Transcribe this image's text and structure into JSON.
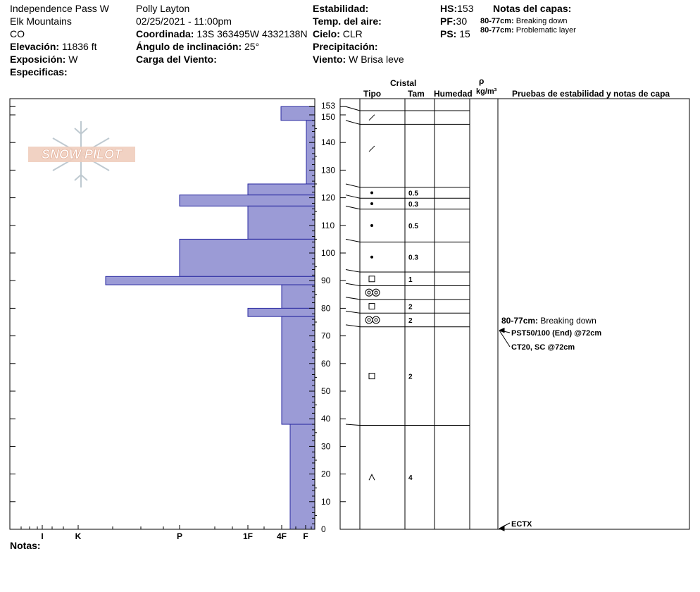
{
  "header": {
    "col1": {
      "location": "Independence Pass W",
      "range": "Elk Mountains",
      "state": "CO",
      "elev_label": "Elevación:",
      "elev_value": "11836 ft",
      "aspect_label": "Exposición:",
      "aspect_value": "W",
      "specifics_label": "Especificas:"
    },
    "col2": {
      "observer": "Polly Layton",
      "datetime": "02/25/2021 - 11:00pm",
      "coord_label": "Coordinada:",
      "coord_value": "13S 363495W 4332138N",
      "slope_label": "Ángulo de inclinación:",
      "slope_value": "25°",
      "wind_load_label": "Carga del Viento:"
    },
    "col3": {
      "stability_label": "Estabilidad:",
      "air_temp_label": "Temp. del aire:",
      "sky_label": "Cielo:",
      "sky_value": "CLR",
      "precip_label": "Precipitación:",
      "wind_label": "Viento:",
      "wind_value": "W Brisa leve"
    },
    "col4": {
      "hs_label": "HS:",
      "hs_value": "153",
      "pf_label": "PF:",
      "pf_value": "30",
      "ps_label": "PS:",
      "ps_value": "15"
    },
    "notes": {
      "title": "Notas del capas:",
      "items": [
        {
          "range": "80-77cm:",
          "text": "Breaking down"
        },
        {
          "range": "80-77cm:",
          "text": "Problematic layer"
        }
      ]
    }
  },
  "columns": {
    "crystal": "Cristal",
    "type": "Tipo",
    "size": "Tam",
    "moisture": "Humedad",
    "rho": "ρ",
    "density_unit": "kg/m³",
    "tests": "Pruebas de estabilidad y notas de capa"
  },
  "logo_text": "SNOW PILOT",
  "notes_label": "Notas:",
  "colors": {
    "bar_fill": "#9b9bd6",
    "bar_stroke": "#2a2aa0"
  },
  "chart_data": {
    "type": "bar",
    "orientation": "horizontal-step",
    "title": "",
    "ylabel": "",
    "ylim": [
      0,
      153
    ],
    "yticks": [
      0,
      10,
      20,
      30,
      40,
      50,
      60,
      70,
      80,
      90,
      100,
      110,
      120,
      130,
      140,
      150,
      153
    ],
    "hardness_scale": [
      "I",
      "K",
      "P",
      "1F",
      "4F",
      "F"
    ],
    "layers": [
      {
        "top": 153,
        "bottom": 148,
        "hardness": "4F+"
      },
      {
        "top": 148,
        "bottom": 125,
        "hardness": "F+"
      },
      {
        "top": 125,
        "bottom": 121,
        "hardness": "1F"
      },
      {
        "top": 121,
        "bottom": 117,
        "hardness": "P"
      },
      {
        "top": 117,
        "bottom": 105,
        "hardness": "1F"
      },
      {
        "top": 105,
        "bottom": 91.5,
        "hardness": "P"
      },
      {
        "top": 91.5,
        "bottom": 88.5,
        "hardness": "K+"
      },
      {
        "top": 88.5,
        "bottom": 80,
        "hardness": "4F"
      },
      {
        "top": 80,
        "bottom": 77,
        "hardness": "1F"
      },
      {
        "top": 77,
        "bottom": 38,
        "hardness": "4F"
      },
      {
        "top": 38,
        "bottom": 0,
        "hardness": "4F-"
      }
    ],
    "grain_layers": [
      {
        "top": 153,
        "bottom": 148,
        "grain": "decomposing",
        "size": ""
      },
      {
        "top": 148,
        "bottom": 125,
        "grain": "decomposing",
        "size": ""
      },
      {
        "top": 125,
        "bottom": 121,
        "grain": "rounded",
        "size": "0.5"
      },
      {
        "top": 121,
        "bottom": 117,
        "grain": "rounded",
        "size": "0.3"
      },
      {
        "top": 117,
        "bottom": 105,
        "grain": "rounded",
        "size": "0.5"
      },
      {
        "top": 105,
        "bottom": 94,
        "grain": "rounded",
        "size": "0.3"
      },
      {
        "top": 94,
        "bottom": 89,
        "grain": "faceted",
        "size": "1"
      },
      {
        "top": 89,
        "bottom": 84,
        "grain": "melt-freeze",
        "size": ""
      },
      {
        "top": 84,
        "bottom": 79,
        "grain": "faceted",
        "size": "2"
      },
      {
        "top": 79,
        "bottom": 74,
        "grain": "melt-freeze",
        "size": "2"
      },
      {
        "top": 74,
        "bottom": 38,
        "grain": "faceted",
        "size": "2"
      },
      {
        "top": 38,
        "bottom": 0,
        "grain": "depth-hoar",
        "size": "4"
      }
    ],
    "layer_notes": [
      {
        "depth": 75.5,
        "range": "80-77cm:",
        "text": "Breaking down"
      }
    ],
    "tests": [
      {
        "depth": 72,
        "text": "PST50/100 (End) @72cm"
      },
      {
        "depth": 72,
        "text": "CT20, SC @72cm"
      },
      {
        "depth": 0,
        "text": "ECTX"
      }
    ]
  }
}
